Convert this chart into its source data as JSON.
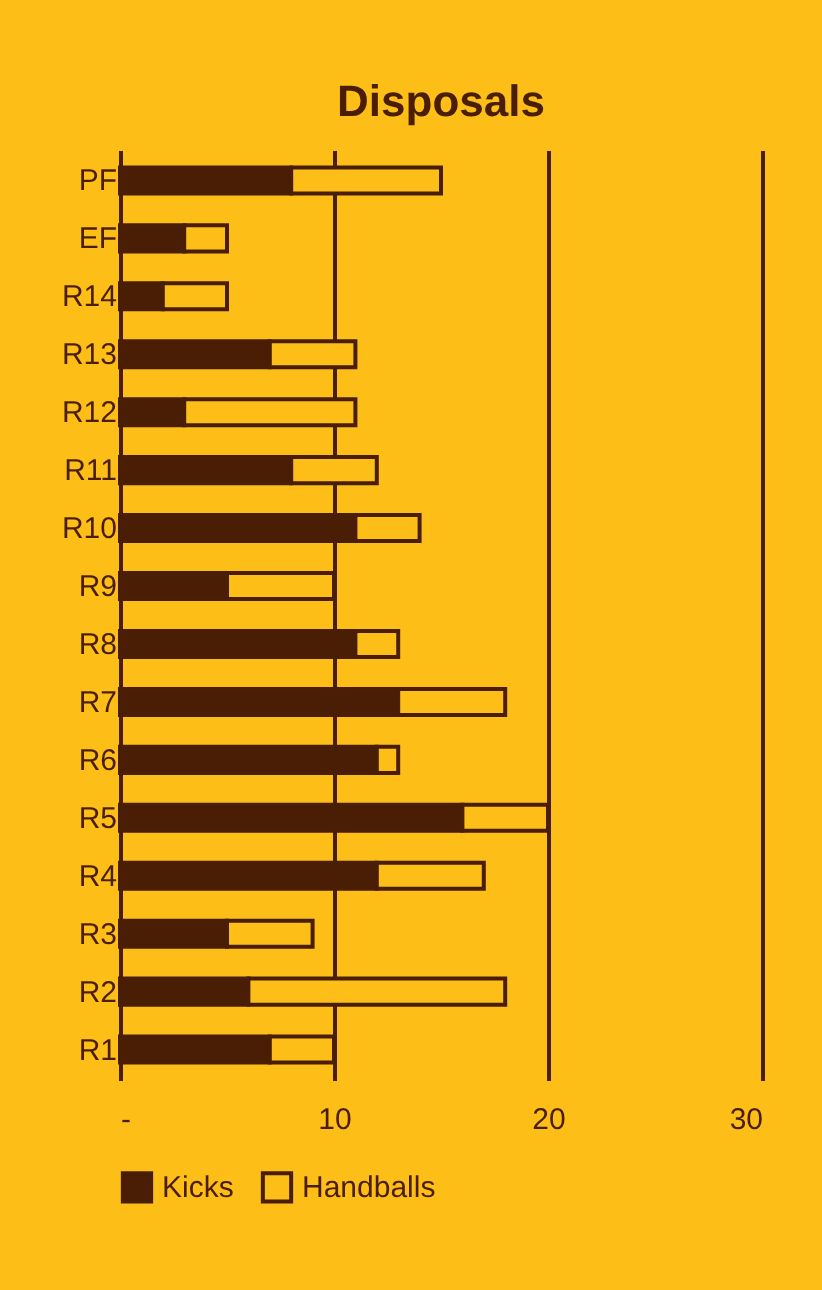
{
  "chart_data": {
    "type": "bar",
    "title": "Disposals",
    "orientation": "horizontal",
    "stacked": true,
    "categories": [
      "PF",
      "EF",
      "R14",
      "R13",
      "R12",
      "R11",
      "R10",
      "R9",
      "R8",
      "R7",
      "R6",
      "R5",
      "R4",
      "R3",
      "R2",
      "R1"
    ],
    "series": [
      {
        "name": "Kicks",
        "color": "#4a1e04",
        "values": [
          8,
          3,
          2,
          7,
          3,
          8,
          11,
          5,
          11,
          13,
          12,
          16,
          12,
          5,
          6,
          7
        ]
      },
      {
        "name": "Handballs",
        "color": "#fdbf17",
        "values": [
          7,
          2,
          3,
          4,
          8,
          4,
          3,
          5,
          2,
          5,
          1,
          4,
          5,
          4,
          12,
          3
        ]
      }
    ],
    "xlim": [
      0,
      30
    ],
    "xticks": [
      {
        "value": 0,
        "label": "-"
      },
      10,
      20,
      30
    ],
    "grid": "x",
    "legend": "bottom"
  }
}
